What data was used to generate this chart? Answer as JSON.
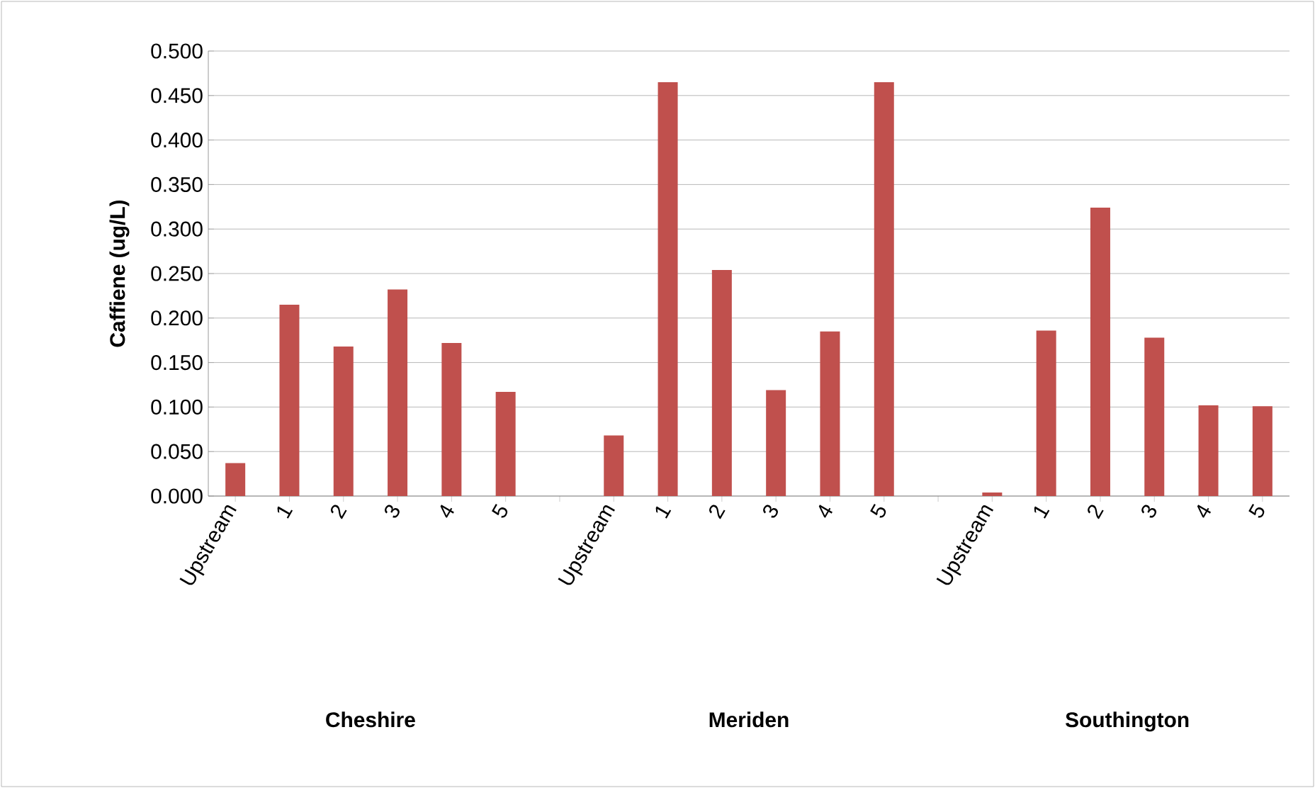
{
  "chart_data": {
    "type": "bar",
    "ylabel": "Caffiene (ug/L)",
    "categories": [
      "Upstream",
      "1",
      "2",
      "3",
      "4",
      "5",
      null,
      "Upstream",
      "1",
      "2",
      "3",
      "4",
      "5",
      null,
      "Upstream",
      "1",
      "2",
      "3",
      "4",
      "5"
    ],
    "values": [
      0.037,
      0.215,
      0.168,
      0.232,
      0.172,
      0.117,
      null,
      0.068,
      0.465,
      0.254,
      0.119,
      0.185,
      0.465,
      null,
      0.004,
      0.186,
      0.324,
      0.178,
      0.102,
      0.101
    ],
    "color": "#c0504d",
    "ylim": [
      0,
      0.5
    ],
    "yticks": [
      {
        "value": 0,
        "label": "0.000"
      },
      {
        "value": 0.05,
        "label": "0.050"
      },
      {
        "value": 0.1,
        "label": "0.100"
      },
      {
        "value": 0.15,
        "label": "0.150"
      },
      {
        "value": 0.2,
        "label": "0.200"
      },
      {
        "value": 0.25,
        "label": "0.250"
      },
      {
        "value": 0.3,
        "label": "0.300"
      },
      {
        "value": 0.35,
        "label": "0.350"
      },
      {
        "value": 0.4,
        "label": "0.400"
      },
      {
        "value": 0.45,
        "label": "0.450"
      },
      {
        "value": 0.5,
        "label": "0.500"
      }
    ],
    "grid": "y",
    "annotations": [
      "Cheshire",
      "Meriden",
      "Southington"
    ]
  }
}
